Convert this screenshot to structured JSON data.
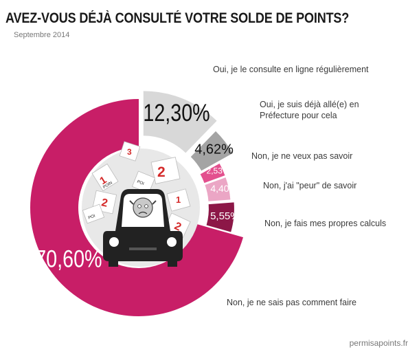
{
  "title": "AVEZ-VOUS DÉJÀ CONSULTÉ VOTRE SOLDE DE POINTS?",
  "subtitle": "Septembre 2014",
  "footer": "permisapoints.fr",
  "icons": [
    "points-cards-icon",
    "worried-driver-car-icon"
  ],
  "chart_data": {
    "type": "pie",
    "title": "AVEZ-VOUS DÉJÀ CONSULTÉ VOTRE SOLDE DE POINTS?",
    "subtitle": "Septembre 2014",
    "donut": true,
    "exploded": true,
    "slices": [
      {
        "label": "Oui, je le consulte en ligne régulièrement",
        "value": 12.3,
        "value_label": "12,30%",
        "color": "#d8d8d8",
        "text_color": "#111111"
      },
      {
        "label": "Oui, je suis déjà allé(e) en Préfecture pour cela",
        "value": 4.62,
        "value_label": "4,62%",
        "color": "#a4a4a4",
        "text_color": "#111111"
      },
      {
        "label": "Non, je ne veux pas savoir",
        "value": 2.53,
        "value_label": "2,53%",
        "color": "#e3508e",
        "text_color": "#ffffff"
      },
      {
        "label": "Non, j'ai \"peur\" de savoir",
        "value": 4.4,
        "value_label": "4,40%",
        "color": "#eba6c5",
        "text_color": "#ffffff"
      },
      {
        "label": "Non, je fais mes propres calculs",
        "value": 5.55,
        "value_label": "5,55%",
        "color": "#8c1747",
        "text_color": "#ffffff"
      },
      {
        "label": "Non, je ne sais pas comment faire",
        "value": 70.6,
        "value_label": "70,60%",
        "color": "#c81e67",
        "text_color": "#ffffff"
      }
    ]
  }
}
